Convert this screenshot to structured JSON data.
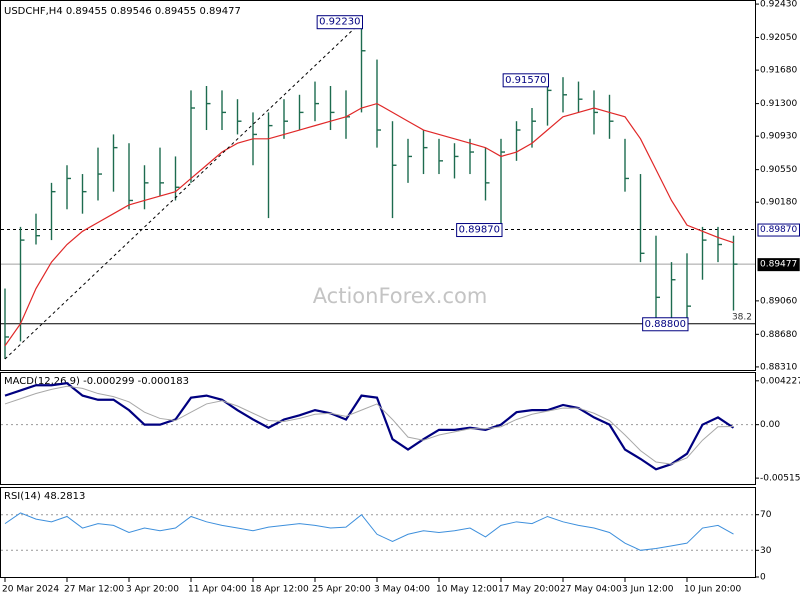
{
  "chart_data": [
    {
      "type": "ohlc",
      "title": "USDCHF,H4  0.89455 0.89546 0.89455 0.89477",
      "watermark": "ActionForex.com",
      "categories": [
        "20 Mar 2024",
        null,
        null,
        null,
        "27 Mar 12:00",
        null,
        null,
        null,
        "3 Apr 20:00",
        null,
        null,
        null,
        "11 Apr 04:00",
        null,
        null,
        null,
        "18 Apr 12:00",
        null,
        null,
        null,
        "25 Apr 20:00",
        null,
        null,
        null,
        "3 May 04:00",
        null,
        null,
        null,
        "10 May 12:00",
        null,
        null,
        null,
        "17 May 20:00",
        null,
        null,
        null,
        "27 May 04:00",
        null,
        null,
        null,
        "3 Jun 12:00",
        null,
        null,
        null,
        "10 Jun 20:00",
        null,
        null,
        null
      ],
      "color": "#1d6b4f",
      "high": [
        0.892,
        0.899,
        0.9005,
        0.904,
        0.906,
        0.905,
        0.908,
        0.9095,
        0.9085,
        0.906,
        0.908,
        0.907,
        0.9145,
        0.915,
        0.9145,
        0.9135,
        0.912,
        0.912,
        0.9135,
        0.914,
        0.9155,
        0.915,
        0.9145,
        0.9223,
        0.918,
        0.911,
        0.909,
        0.91,
        0.909,
        0.9085,
        0.909,
        0.908,
        0.909,
        0.911,
        0.9125,
        0.9157,
        0.916,
        0.9155,
        0.9145,
        0.914,
        0.909,
        0.905,
        0.898,
        0.895,
        0.896,
        0.899,
        0.899,
        0.898
      ],
      "low": [
        0.884,
        0.886,
        0.897,
        0.8975,
        0.901,
        0.9005,
        0.902,
        0.903,
        0.901,
        0.901,
        0.9025,
        0.902,
        0.904,
        0.91,
        0.91,
        0.9095,
        0.906,
        0.9,
        0.909,
        0.91,
        0.911,
        0.91,
        0.909,
        0.912,
        0.908,
        0.9,
        0.904,
        0.905,
        0.905,
        0.9045,
        0.905,
        0.902,
        0.8987,
        0.9065,
        0.908,
        0.9105,
        0.912,
        0.912,
        0.9095,
        0.909,
        0.903,
        0.895,
        0.888,
        0.8885,
        0.888,
        0.893,
        0.895,
        0.8895
      ],
      "close": [
        0.8865,
        0.8975,
        0.898,
        0.903,
        0.9045,
        0.903,
        0.905,
        0.908,
        0.902,
        0.904,
        0.904,
        0.9035,
        0.9125,
        0.913,
        0.912,
        0.911,
        0.9095,
        0.9105,
        0.911,
        0.912,
        0.913,
        0.912,
        0.9115,
        0.919,
        0.91,
        0.906,
        0.907,
        0.908,
        0.9065,
        0.907,
        0.9075,
        0.904,
        0.9075,
        0.91,
        0.911,
        0.9145,
        0.914,
        0.9135,
        0.912,
        0.911,
        0.9045,
        0.896,
        0.891,
        0.893,
        0.89,
        0.8975,
        0.897,
        0.89477
      ],
      "ma": {
        "color": "#e02828",
        "values": [
          0.8855,
          0.888,
          0.892,
          0.895,
          0.897,
          0.8985,
          0.8995,
          0.9005,
          0.9015,
          0.902,
          0.9025,
          0.903,
          0.9045,
          0.906,
          0.9075,
          0.9085,
          0.909,
          0.909,
          0.9095,
          0.91,
          0.9105,
          0.911,
          0.9115,
          0.9125,
          0.913,
          0.912,
          0.911,
          0.91,
          0.9095,
          0.909,
          0.9085,
          0.908,
          0.907,
          0.9075,
          0.9085,
          0.91,
          0.9115,
          0.912,
          0.9125,
          0.912,
          0.9115,
          0.909,
          0.9055,
          0.902,
          0.8992,
          0.8985,
          0.8978,
          0.8972
        ]
      },
      "ylim": [
        0.88275,
        0.92465
      ],
      "yticks": [
        {
          "value": 0.9243,
          "label": "0.92430"
        },
        {
          "value": 0.9205,
          "label": "0.92050"
        },
        {
          "value": 0.9168,
          "label": "0.91680"
        },
        {
          "value": 0.913,
          "label": "0.91300"
        },
        {
          "value": 0.9093,
          "label": "0.90930"
        },
        {
          "value": 0.9055,
          "label": "0.90550"
        },
        {
          "value": 0.9018,
          "label": "0.90180"
        },
        {
          "value": 0.8906,
          "label": "0.89060"
        },
        {
          "value": 0.8868,
          "label": "0.88680"
        },
        {
          "value": 0.8831,
          "label": "0.88310"
        }
      ],
      "levels": [
        {
          "value": 0.8987,
          "label": "0.89870",
          "style": "dashed"
        },
        {
          "value": 0.89477,
          "label": "0.89477",
          "style": "current"
        },
        {
          "value": 0.888,
          "style": "solid",
          "fib": 38.2
        }
      ],
      "annotations": [
        {
          "index": 23,
          "value": 0.9223,
          "label": "0.92230"
        },
        {
          "index": 35,
          "value": 0.9157,
          "label": "0.91570"
        },
        {
          "index": 32,
          "value": 0.8987,
          "label": "0.89870"
        },
        {
          "index": 44,
          "value": 0.888,
          "label": "0.88800"
        }
      ],
      "trendline": [
        0,
        23
      ]
    },
    {
      "type": "line",
      "title": "MACD(12,26,9) -0.000299 -0.000183",
      "series": [
        {
          "color": "#000080",
          "values": [
            0.0028,
            0.0033,
            0.0038,
            0.0038,
            0.004,
            0.0028,
            0.0024,
            0.0024,
            0.0014,
            0,
            0,
            0.0005,
            0.0026,
            0.0028,
            0.0024,
            0.0014,
            0.0005,
            -0.0003,
            0.0005,
            0.0009,
            0.0014,
            0.0011,
            0.0005,
            0.0028,
            0.0026,
            -0.0014,
            -0.0024,
            -0.0014,
            -0.0005,
            -0.0005,
            -0.0003,
            -0.0005,
            0,
            0.0012,
            0.0014,
            0.0014,
            0.0019,
            0.0016,
            0.0007,
            0,
            -0.0024,
            -0.0033,
            -0.0043,
            -0.0038,
            -0.0028,
            0,
            0.0007,
            -0.000299
          ]
        },
        {
          "color": "#a8a8a8",
          "values": [
            0.002,
            0.0025,
            0.003,
            0.0034,
            0.0037,
            0.0035,
            0.003,
            0.0027,
            0.0022,
            0.0012,
            0.0006,
            0.0004,
            0.0012,
            0.002,
            0.0023,
            0.0018,
            0.0011,
            0.0004,
            0.0003,
            0.0006,
            0.001,
            0.0011,
            0.0008,
            0.0014,
            0.002,
            0.0005,
            -0.0012,
            -0.0015,
            -0.001,
            -0.0007,
            -0.0004,
            -0.0004,
            -0.0002,
            0.0005,
            0.001,
            0.0013,
            0.0016,
            0.0016,
            0.0011,
            0.0004,
            -0.001,
            -0.0025,
            -0.0036,
            -0.0038,
            -0.0032,
            -0.0015,
            -0.0002,
            -0.000183
          ]
        }
      ],
      "ylim": [
        -0.00572,
        0.00498
      ],
      "yticks": [
        0.004227,
        {
          "value": 0,
          "label": "0.00"
        },
        -0.005153
      ],
      "levels": [
        {
          "value": 0
        }
      ]
    },
    {
      "type": "line",
      "title": "RSI(14) 48.2813",
      "series": [
        {
          "color": "#3d8fdc",
          "values": [
            60,
            72,
            65,
            62,
            68,
            55,
            60,
            58,
            50,
            55,
            52,
            55,
            68,
            62,
            58,
            55,
            52,
            56,
            58,
            60,
            58,
            55,
            56,
            70,
            48,
            40,
            48,
            52,
            50,
            52,
            55,
            45,
            58,
            62,
            60,
            68,
            62,
            58,
            55,
            50,
            38,
            30,
            32,
            35,
            38,
            55,
            58,
            48.2813
          ]
        }
      ],
      "ylim": [
        0,
        100
      ],
      "yticks": [
        70,
        30,
        0
      ],
      "levels": [
        {
          "value": 70
        },
        {
          "value": 30
        }
      ]
    }
  ]
}
